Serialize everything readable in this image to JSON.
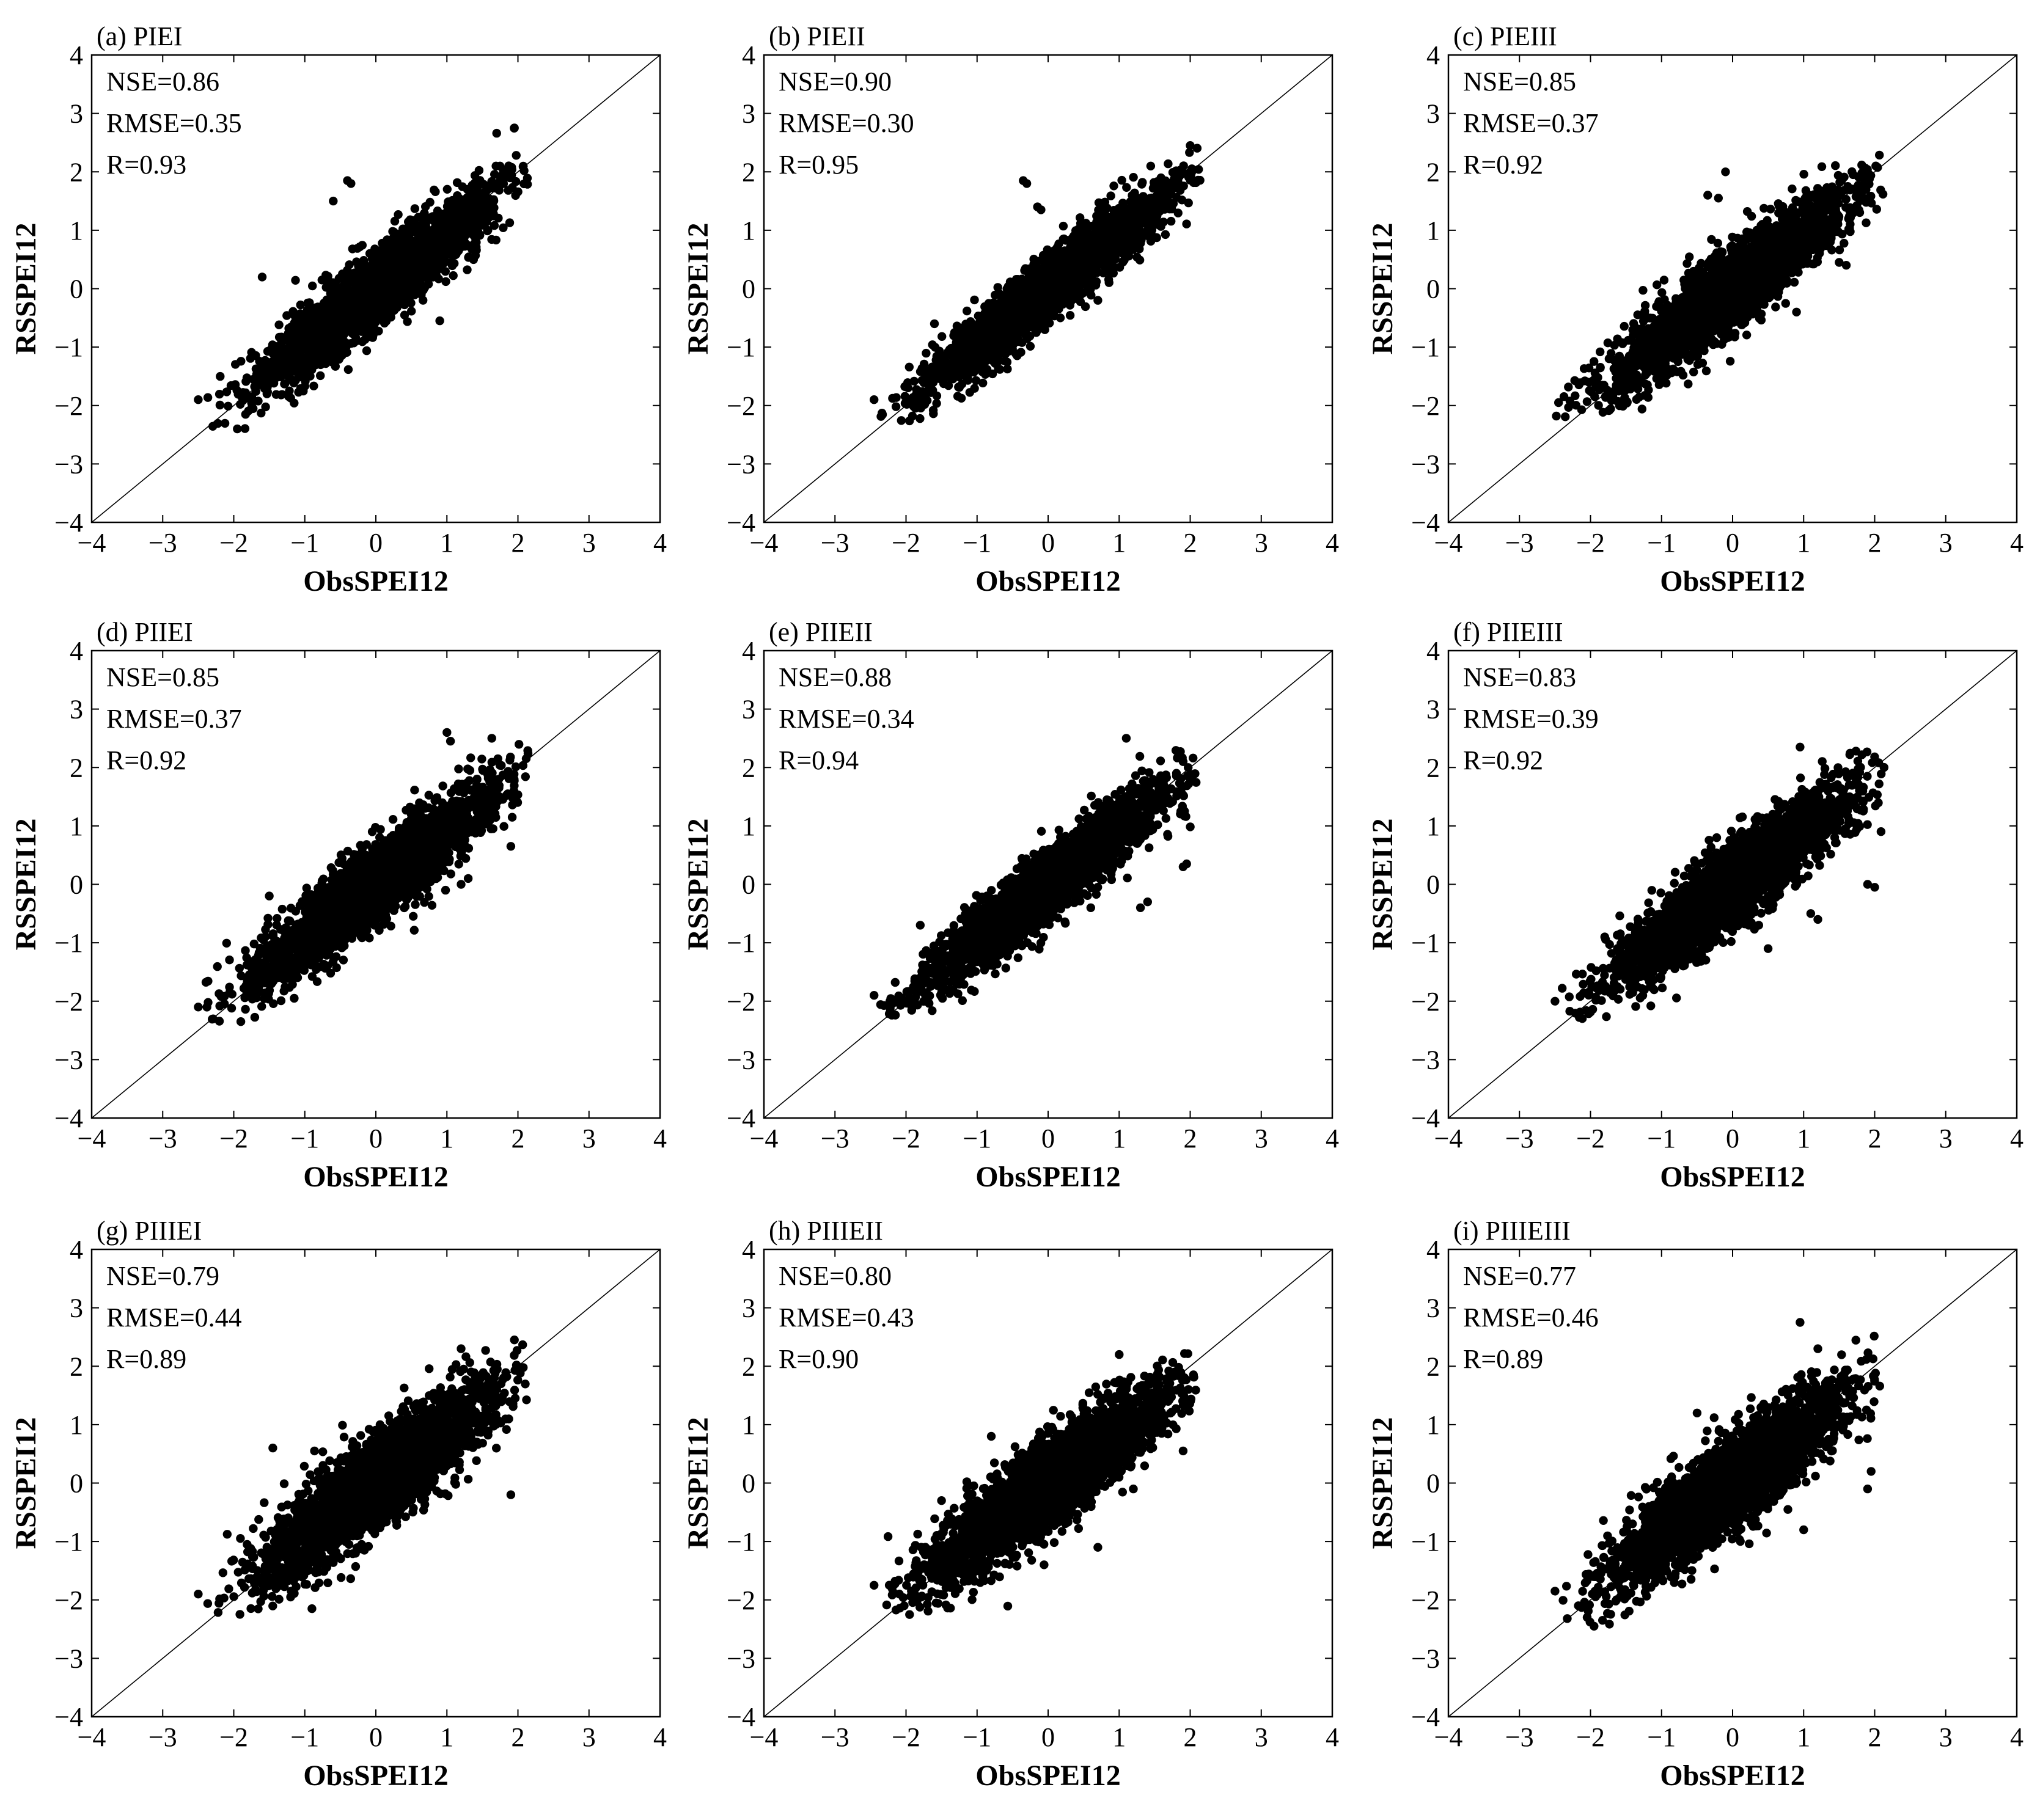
{
  "figure": {
    "description_free": true,
    "point_color": "#000000",
    "line_color": "#000000",
    "background": "#ffffff"
  },
  "chart_data": [
    {
      "id": "a",
      "type": "scatter",
      "title": "(a) PIEI",
      "xlabel": "ObsSPEI12",
      "ylabel": "RSSPEI12",
      "xlim": [
        -4,
        4
      ],
      "ylim": [
        -4,
        4
      ],
      "xticks": [
        "−4",
        "−3",
        "−2",
        "−1",
        "0",
        "1",
        "2",
        "3",
        "4"
      ],
      "yticks": [
        "−4",
        "−3",
        "−2",
        "−1",
        "0",
        "1",
        "2",
        "3",
        "4"
      ],
      "reference_line": "1:1",
      "stats": {
        "NSE": "NSE=0.86",
        "RMSE": "RMSE=0.35",
        "R": "R=0.93"
      },
      "series": [
        {
          "name": "points",
          "x_range": [
            -2.5,
            2.2
          ],
          "y_range": [
            -2.4,
            2.75
          ],
          "n": 2600,
          "r": 0.93,
          "seed": 11,
          "outliers": [
            [
              -0.4,
              1.85
            ],
            [
              -0.35,
              1.8
            ],
            [
              -1.6,
              0.2
            ],
            [
              1.95,
              2.75
            ],
            [
              -2.5,
              -1.9
            ],
            [
              -1.95,
              -2.4
            ],
            [
              0.9,
              -0.55
            ],
            [
              -0.6,
              1.5
            ]
          ]
        }
      ]
    },
    {
      "id": "b",
      "type": "scatter",
      "title": "(b) PIEII",
      "xlabel": "ObsSPEI12",
      "ylabel": "RSSPEI12",
      "xlim": [
        -4,
        4
      ],
      "ylim": [
        -4,
        4
      ],
      "xticks": [
        "−4",
        "−3",
        "−2",
        "−1",
        "0",
        "1",
        "2",
        "3",
        "4"
      ],
      "yticks": [
        "−4",
        "−3",
        "−2",
        "−1",
        "0",
        "1",
        "2",
        "3",
        "4"
      ],
      "reference_line": "1:1",
      "stats": {
        "NSE": "NSE=0.90",
        "RMSE": "RMSE=0.30",
        "R": "R=0.95"
      },
      "series": [
        {
          "name": "points",
          "x_range": [
            -2.45,
            2.2
          ],
          "y_range": [
            -2.3,
            2.45
          ],
          "n": 2600,
          "r": 0.95,
          "seed": 23,
          "outliers": [
            [
              -0.35,
              1.85
            ],
            [
              -0.3,
              1.8
            ],
            [
              -0.15,
              1.4
            ],
            [
              -0.1,
              1.35
            ],
            [
              -2.45,
              -1.9
            ],
            [
              2.0,
              2.45
            ],
            [
              0.7,
              -0.2
            ],
            [
              -1.6,
              -0.6
            ]
          ]
        }
      ]
    },
    {
      "id": "c",
      "type": "scatter",
      "title": "(c) PIEIII",
      "xlabel": "ObsSPEI12",
      "ylabel": "RSSPEI12",
      "xlim": [
        -4,
        4
      ],
      "ylim": [
        -4,
        4
      ],
      "xticks": [
        "−4",
        "−3",
        "−2",
        "−1",
        "0",
        "1",
        "2",
        "3",
        "4"
      ],
      "yticks": [
        "−4",
        "−3",
        "−2",
        "−1",
        "0",
        "1",
        "2",
        "3",
        "4"
      ],
      "reference_line": "1:1",
      "stats": {
        "NSE": "NSE=0.85",
        "RMSE": "RMSE=0.37",
        "R": "R=0.92"
      },
      "series": [
        {
          "name": "points",
          "x_range": [
            -2.5,
            2.2
          ],
          "y_range": [
            -2.3,
            2.35
          ],
          "n": 2800,
          "r": 0.92,
          "seed": 37,
          "outliers": [
            [
              -0.1,
              2.0
            ],
            [
              -0.35,
              1.6
            ],
            [
              -0.2,
              1.55
            ],
            [
              -1.4,
              -0.8
            ],
            [
              -2.45,
              -1.95
            ],
            [
              1.6,
              0.4
            ],
            [
              1.5,
              0.45
            ],
            [
              0.9,
              -0.4
            ]
          ]
        }
      ]
    },
    {
      "id": "d",
      "type": "scatter",
      "title": "(d) PIIEI",
      "xlabel": "ObsSPEI12",
      "ylabel": "RSSPEI12",
      "xlim": [
        -4,
        4
      ],
      "ylim": [
        -4,
        4
      ],
      "xticks": [
        "−4",
        "−3",
        "−2",
        "−1",
        "0",
        "1",
        "2",
        "3",
        "4"
      ],
      "yticks": [
        "−4",
        "−3",
        "−2",
        "−1",
        "0",
        "1",
        "2",
        "3",
        "4"
      ],
      "reference_line": "1:1",
      "stats": {
        "NSE": "NSE=0.85",
        "RMSE": "RMSE=0.37",
        "R": "R=0.92"
      },
      "series": [
        {
          "name": "points",
          "x_range": [
            -2.5,
            2.2
          ],
          "y_range": [
            -2.4,
            2.6
          ],
          "n": 2800,
          "r": 0.92,
          "seed": 41,
          "outliers": [
            [
              1.0,
              2.6
            ],
            [
              1.05,
              2.45
            ],
            [
              -2.5,
              -2.1
            ],
            [
              -1.9,
              -2.35
            ],
            [
              1.9,
              0.65
            ],
            [
              -1.5,
              -0.2
            ],
            [
              1.2,
              0.0
            ],
            [
              1.3,
              0.1
            ]
          ]
        }
      ]
    },
    {
      "id": "e",
      "type": "scatter",
      "title": "(e) PIIEII",
      "xlabel": "ObsSPEI12",
      "ylabel": "RSSPEI12",
      "xlim": [
        -4,
        4
      ],
      "ylim": [
        -4,
        4
      ],
      "xticks": [
        "−4",
        "−3",
        "−2",
        "−1",
        "0",
        "1",
        "2",
        "3",
        "4"
      ],
      "yticks": [
        "−4",
        "−3",
        "−2",
        "−1",
        "0",
        "1",
        "2",
        "3",
        "4"
      ],
      "reference_line": "1:1",
      "stats": {
        "NSE": "NSE=0.88",
        "RMSE": "RMSE=0.34",
        "R": "R=0.94"
      },
      "series": [
        {
          "name": "points",
          "x_range": [
            -2.45,
            2.2
          ],
          "y_range": [
            -2.25,
            2.5
          ],
          "n": 2700,
          "r": 0.94,
          "seed": 53,
          "outliers": [
            [
              1.1,
              2.5
            ],
            [
              -2.45,
              -1.9
            ],
            [
              1.9,
              0.3
            ],
            [
              1.95,
              0.35
            ],
            [
              1.4,
              -0.3
            ],
            [
              1.3,
              -0.4
            ],
            [
              -1.8,
              -0.7
            ],
            [
              0.6,
              -0.4
            ]
          ]
        }
      ]
    },
    {
      "id": "f",
      "type": "scatter",
      "title": "(f) PIIEIII",
      "xlabel": "ObsSPEI12",
      "ylabel": "RSSPEI12",
      "xlim": [
        -4,
        4
      ],
      "ylim": [
        -4,
        4
      ],
      "xticks": [
        "−4",
        "−3",
        "−2",
        "−1",
        "0",
        "1",
        "2",
        "3",
        "4"
      ],
      "yticks": [
        "−4",
        "−3",
        "−2",
        "−1",
        "0",
        "1",
        "2",
        "3",
        "4"
      ],
      "reference_line": "1:1",
      "stats": {
        "NSE": "NSE=0.83",
        "RMSE": "RMSE=0.39",
        "R": "R=0.92"
      },
      "series": [
        {
          "name": "points",
          "x_range": [
            -2.5,
            2.2
          ],
          "y_range": [
            -2.3,
            2.35
          ],
          "n": 2800,
          "r": 0.92,
          "seed": 67,
          "outliers": [
            [
              0.95,
              2.35
            ],
            [
              -2.5,
              -2.0
            ],
            [
              1.9,
              0.0
            ],
            [
              2.0,
              -0.05
            ],
            [
              1.1,
              -0.5
            ],
            [
              1.2,
              -0.6
            ],
            [
              -1.8,
              -0.9
            ],
            [
              0.5,
              -1.1
            ]
          ]
        }
      ]
    },
    {
      "id": "g",
      "type": "scatter",
      "title": "(g) PIIIEI",
      "xlabel": "ObsSPEI12",
      "ylabel": "RSSPEI12",
      "xlim": [
        -4,
        4
      ],
      "ylim": [
        -4,
        4
      ],
      "xticks": [
        "−4",
        "−3",
        "−2",
        "−1",
        "0",
        "1",
        "2",
        "3",
        "4"
      ],
      "yticks": [
        "−4",
        "−3",
        "−2",
        "−1",
        "0",
        "1",
        "2",
        "3",
        "4"
      ],
      "reference_line": "1:1",
      "stats": {
        "NSE": "NSE=0.79",
        "RMSE": "RMSE=0.44",
        "R": "R=0.89"
      },
      "series": [
        {
          "name": "points",
          "x_range": [
            -2.5,
            2.2
          ],
          "y_range": [
            -2.3,
            2.45
          ],
          "n": 2900,
          "r": 0.89,
          "seed": 79,
          "outliers": [
            [
              -2.5,
              -1.9
            ],
            [
              -0.9,
              -2.15
            ],
            [
              -1.45,
              0.6
            ],
            [
              0.2,
              0.9
            ],
            [
              1.9,
              -0.2
            ],
            [
              1.2,
              2.3
            ],
            [
              1.95,
              2.45
            ],
            [
              -1.2,
              -1.95
            ]
          ]
        }
      ]
    },
    {
      "id": "h",
      "type": "scatter",
      "title": "(h) PIIIEII",
      "xlabel": "ObsSPEI12",
      "ylabel": "RSSPEI12",
      "xlim": [
        -4,
        4
      ],
      "ylim": [
        -4,
        4
      ],
      "xticks": [
        "−4",
        "−3",
        "−2",
        "−1",
        "0",
        "1",
        "2",
        "3",
        "4"
      ],
      "yticks": [
        "−4",
        "−3",
        "−2",
        "−1",
        "0",
        "1",
        "2",
        "3",
        "4"
      ],
      "reference_line": "1:1",
      "stats": {
        "NSE": "NSE=0.80",
        "RMSE": "RMSE=0.43",
        "R": "R=0.90"
      },
      "series": [
        {
          "name": "points",
          "x_range": [
            -2.45,
            2.2
          ],
          "y_range": [
            -2.25,
            2.25
          ],
          "n": 2900,
          "r": 0.9,
          "seed": 89,
          "outliers": [
            [
              -2.45,
              -1.75
            ],
            [
              1.9,
              0.55
            ],
            [
              1.2,
              -0.1
            ],
            [
              0.7,
              -1.1
            ],
            [
              -0.8,
              0.8
            ],
            [
              -1.5,
              -0.3
            ],
            [
              1.0,
              2.2
            ],
            [
              -1.95,
              -2.25
            ]
          ]
        }
      ]
    },
    {
      "id": "i",
      "type": "scatter",
      "title": "(i) PIIIEIII",
      "xlabel": "ObsSPEI12",
      "ylabel": "RSSPEI12",
      "xlim": [
        -4,
        4
      ],
      "ylim": [
        -4,
        4
      ],
      "xticks": [
        "−4",
        "−3",
        "−2",
        "−1",
        "0",
        "1",
        "2",
        "3",
        "4"
      ],
      "yticks": [
        "−4",
        "−3",
        "−2",
        "−1",
        "0",
        "1",
        "2",
        "3",
        "4"
      ],
      "reference_line": "1:1",
      "stats": {
        "NSE": "NSE=0.77",
        "RMSE": "RMSE=0.46",
        "R": "R=0.89"
      },
      "series": [
        {
          "name": "points",
          "x_range": [
            -2.5,
            2.2
          ],
          "y_range": [
            -2.5,
            2.75
          ],
          "n": 2900,
          "r": 0.89,
          "seed": 97,
          "outliers": [
            [
              0.95,
              2.75
            ],
            [
              -2.5,
              -1.85
            ],
            [
              -1.95,
              -2.45
            ],
            [
              1.9,
              -0.1
            ],
            [
              1.95,
              0.2
            ],
            [
              1.0,
              -0.8
            ],
            [
              -0.5,
              1.2
            ],
            [
              1.2,
              2.3
            ]
          ]
        }
      ]
    }
  ]
}
